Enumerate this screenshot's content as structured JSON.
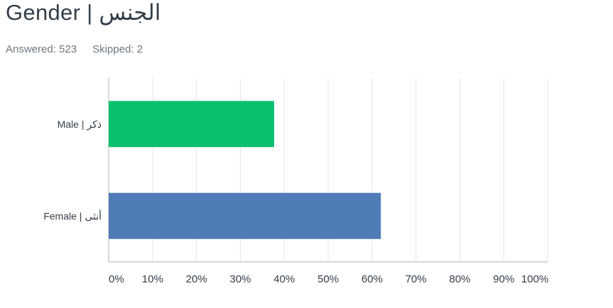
{
  "header": {
    "title": "Gender | الجنس",
    "answered_label": "Answered: 523",
    "skipped_label": "Skipped: 2"
  },
  "colors": {
    "male_bar": "#0abf6e",
    "female_bar": "#4f7cb6",
    "grid": "#e3e5e8",
    "axis": "#c9cdd1"
  },
  "chart_data": {
    "type": "bar",
    "orientation": "horizontal",
    "categories": [
      "Male | ذكر",
      "Female | أنثى"
    ],
    "values": [
      37.7,
      62.0
    ],
    "unit": "%",
    "xlim": [
      0,
      100
    ],
    "ticks": [
      "0%",
      "10%",
      "20%",
      "30%",
      "40%",
      "50%",
      "60%",
      "70%",
      "80%",
      "90%",
      "100%"
    ],
    "grid": true,
    "title": "Gender | الجنس",
    "xlabel": "",
    "ylabel": ""
  }
}
